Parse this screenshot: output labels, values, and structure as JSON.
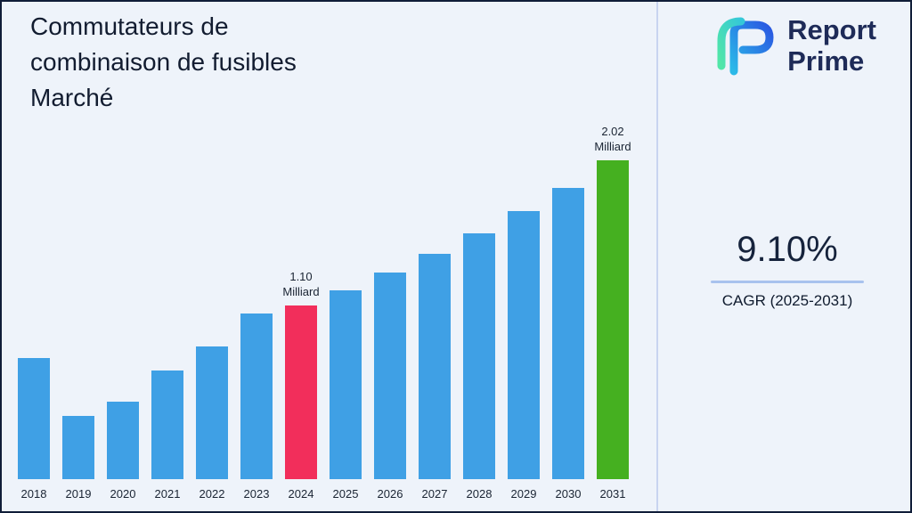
{
  "page": {
    "title": "Commutateurs de combinaison de fusibles Marché"
  },
  "brand": {
    "name_line1": "Report",
    "name_line2": "Prime"
  },
  "stats": {
    "cagr_value": "9.10%",
    "cagr_label": "CAGR (2025-2031)"
  },
  "colors": {
    "background": "#EEF3FA",
    "border": "#101D38",
    "bar_default": "#3FA0E5",
    "bar_highlight_2024": "#F22E5B",
    "bar_highlight_2031": "#45B020",
    "divider": "#C8D4F0",
    "cagr_underline": "#A8C2EE",
    "title_text": "#121C30",
    "brand_text": "#1E2B58"
  },
  "chart_data": {
    "type": "bar",
    "title": "Commutateurs de combinaison de fusibles Marché",
    "unit": "Milliard",
    "categories": [
      "2018",
      "2019",
      "2020",
      "2021",
      "2022",
      "2023",
      "2024",
      "2025",
      "2026",
      "2027",
      "2028",
      "2029",
      "2030",
      "2031"
    ],
    "values": [
      0.77,
      0.4,
      0.49,
      0.69,
      0.84,
      1.05,
      1.1,
      1.2,
      1.31,
      1.43,
      1.56,
      1.7,
      1.85,
      2.02
    ],
    "annotations": [
      {
        "category": "2024",
        "line1": "1.10",
        "line2": "Milliard"
      },
      {
        "category": "2031",
        "line1": "2.02",
        "line2": "Milliard"
      }
    ],
    "bar_colors": {
      "default": "#3FA0E5",
      "2024": "#F22E5B",
      "2031": "#45B020"
    },
    "xlabel": "",
    "ylabel": "",
    "ylim": [
      0,
      2.1
    ],
    "grid": false,
    "legend": false
  }
}
